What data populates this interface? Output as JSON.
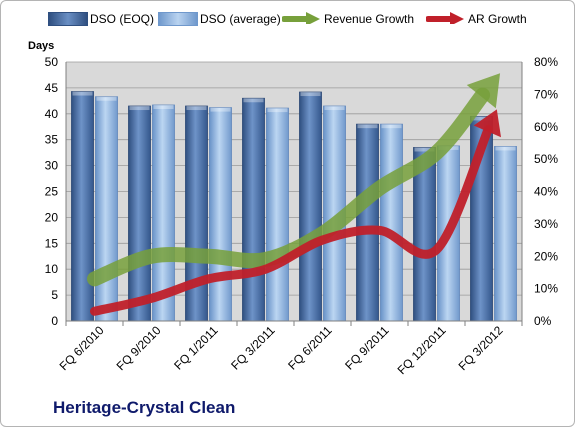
{
  "legend": {
    "dso_eoq": "DSO (EOQ)",
    "dso_avg": "DSO (average)",
    "revenue": "Revenue Growth",
    "ar": "AR Growth"
  },
  "colors": {
    "dso_eoq": "#4a6fa5",
    "dso_avg": "#8db4e2",
    "revenue": "#77a03b",
    "ar": "#c0202a",
    "title": "#0f1a6b",
    "plot_bg": "#d9d9d9"
  },
  "chart_data": {
    "type": "bar",
    "title": "Heritage-Crystal Clean",
    "ylabel": "Days",
    "ylim": [
      0,
      50
    ],
    "y2lim": [
      0,
      0.8
    ],
    "yticks": [
      "0",
      "5",
      "10",
      "15",
      "20",
      "25",
      "30",
      "35",
      "40",
      "45",
      "50"
    ],
    "y2ticks": [
      "0%",
      "10%",
      "20%",
      "30%",
      "40%",
      "50%",
      "60%",
      "70%",
      "80%"
    ],
    "categories": [
      "FQ 6/2010",
      "FQ 9/2010",
      "FQ 1/2011",
      "FQ 3/2011",
      "FQ 6/2011",
      "FQ 9/2011",
      "FQ 12/2011",
      "FQ 3/2012"
    ],
    "series": [
      {
        "name": "DSO (EOQ)",
        "type": "bar",
        "values": [
          44.3,
          41.5,
          41.5,
          43.0,
          44.2,
          38.0,
          33.5,
          39.5
        ]
      },
      {
        "name": "DSO (average)",
        "type": "bar",
        "values": [
          43.3,
          41.7,
          41.2,
          41.1,
          41.5,
          38.0,
          33.8,
          33.7
        ]
      },
      {
        "name": "Revenue Growth",
        "type": "line",
        "axis": "secondary",
        "values": [
          0.13,
          0.2,
          0.2,
          0.19,
          0.27,
          0.41,
          0.52,
          0.74
        ]
      },
      {
        "name": "AR Growth",
        "type": "line",
        "axis": "secondary",
        "values": [
          0.03,
          0.07,
          0.13,
          0.16,
          0.25,
          0.28,
          0.22,
          0.63
        ]
      }
    ]
  }
}
